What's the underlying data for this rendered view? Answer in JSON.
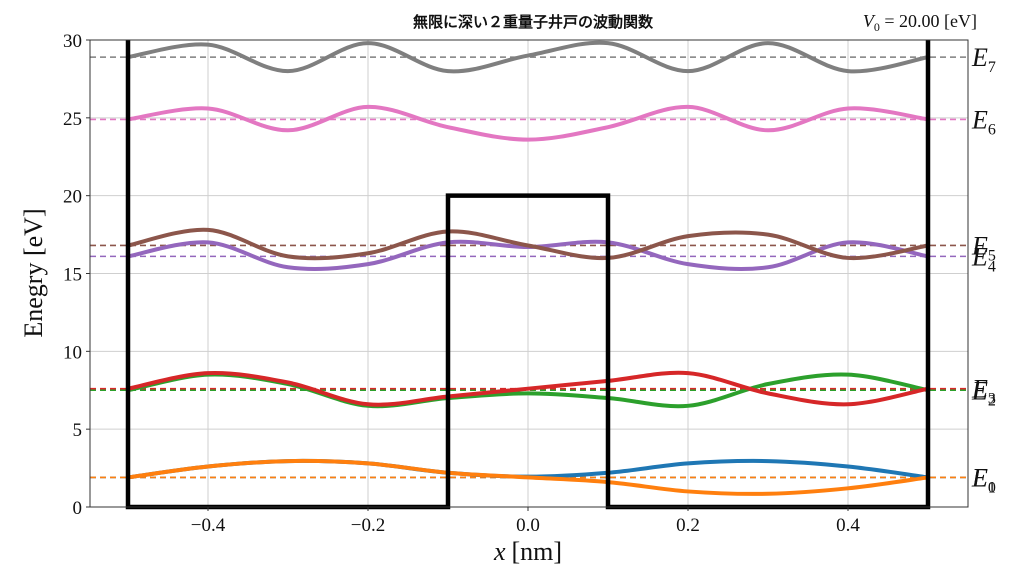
{
  "chart_data": {
    "type": "line",
    "title": "無限に深い２重量子井戸の波動関数",
    "annotation": "V_0 = 20.00 [eV]",
    "xlabel": "x [nm]",
    "ylabel": "Enegry [eV]",
    "xlim": [
      -0.55,
      0.55
    ],
    "ylim": [
      0,
      30
    ],
    "xticks": [
      -0.4,
      -0.2,
      0.0,
      0.2,
      0.4
    ],
    "xtick_labels": [
      "−0.4",
      "−0.2",
      "0.0",
      "0.2",
      "0.4"
    ],
    "yticks": [
      0,
      5,
      10,
      15,
      20,
      25,
      30
    ],
    "ytick_labels": [
      "0",
      "5",
      "10",
      "15",
      "20",
      "25",
      "30"
    ],
    "grid": true,
    "potential": {
      "description": "Infinite walls at x=±0.5 nm, central barrier of height V0=20 eV between x=-0.1 and x=0.1 nm",
      "x": [
        -0.5,
        -0.5,
        -0.1,
        -0.1,
        0.1,
        0.1,
        0.5,
        0.5
      ],
      "y": [
        30,
        0,
        0,
        20,
        20,
        0,
        0,
        30
      ]
    },
    "energy_levels": [
      {
        "name": "E_0",
        "energy": 1.9,
        "color": "#1f77b4"
      },
      {
        "name": "E_1",
        "energy": 1.9,
        "color": "#ff7f0e"
      },
      {
        "name": "E_2",
        "energy": 7.5,
        "color": "#2ca02c"
      },
      {
        "name": "E_3",
        "energy": 7.6,
        "color": "#d62728"
      },
      {
        "name": "E_4",
        "energy": 16.1,
        "color": "#9467bd"
      },
      {
        "name": "E_5",
        "energy": 16.8,
        "color": "#8c564b"
      },
      {
        "name": "E_6",
        "energy": 24.9,
        "color": "#e377c2"
      },
      {
        "name": "E_7",
        "energy": 28.9,
        "color": "#7f7f7f"
      }
    ],
    "series": [
      {
        "name": "psi_0",
        "color": "#1f77b4",
        "offset": 1.9,
        "x": [
          -0.5,
          -0.4,
          -0.3,
          -0.2,
          -0.1,
          0.0,
          0.1,
          0.2,
          0.3,
          0.4,
          0.5
        ],
        "values": [
          1.9,
          2.6,
          2.95,
          2.8,
          2.2,
          1.95,
          2.2,
          2.8,
          2.95,
          2.6,
          1.9
        ]
      },
      {
        "name": "psi_1",
        "color": "#ff7f0e",
        "offset": 1.9,
        "x": [
          -0.5,
          -0.4,
          -0.3,
          -0.2,
          -0.1,
          0.0,
          0.1,
          0.2,
          0.3,
          0.4,
          0.5
        ],
        "values": [
          1.9,
          2.6,
          2.95,
          2.8,
          2.2,
          1.9,
          1.6,
          1.0,
          0.85,
          1.2,
          1.9
        ]
      },
      {
        "name": "psi_2",
        "color": "#2ca02c",
        "offset": 7.5,
        "x": [
          -0.5,
          -0.4,
          -0.3,
          -0.2,
          -0.1,
          0.0,
          0.1,
          0.2,
          0.3,
          0.4,
          0.5
        ],
        "values": [
          7.5,
          8.5,
          7.9,
          6.5,
          7.0,
          7.3,
          7.0,
          6.5,
          7.9,
          8.5,
          7.5
        ]
      },
      {
        "name": "psi_3",
        "color": "#d62728",
        "offset": 7.6,
        "x": [
          -0.5,
          -0.4,
          -0.3,
          -0.2,
          -0.1,
          0.0,
          0.1,
          0.2,
          0.3,
          0.4,
          0.5
        ],
        "values": [
          7.6,
          8.6,
          8.0,
          6.6,
          7.1,
          7.6,
          8.1,
          8.6,
          7.3,
          6.6,
          7.6
        ]
      },
      {
        "name": "psi_4",
        "color": "#9467bd",
        "offset": 16.1,
        "x": [
          -0.5,
          -0.4,
          -0.3,
          -0.2,
          -0.1,
          0.0,
          0.1,
          0.2,
          0.3,
          0.4,
          0.5
        ],
        "values": [
          16.1,
          17.0,
          15.4,
          15.6,
          17.0,
          16.7,
          17.0,
          15.6,
          15.4,
          17.0,
          16.1
        ]
      },
      {
        "name": "psi_5",
        "color": "#8c564b",
        "offset": 16.8,
        "x": [
          -0.5,
          -0.4,
          -0.3,
          -0.2,
          -0.1,
          0.0,
          0.1,
          0.2,
          0.3,
          0.4,
          0.5
        ],
        "values": [
          16.8,
          17.8,
          16.1,
          16.3,
          17.7,
          16.8,
          16.0,
          17.4,
          17.5,
          16.0,
          16.8
        ]
      },
      {
        "name": "psi_6",
        "color": "#e377c2",
        "offset": 24.9,
        "x": [
          -0.5,
          -0.4,
          -0.3,
          -0.2,
          -0.1,
          0.0,
          0.1,
          0.2,
          0.3,
          0.4,
          0.5
        ],
        "values": [
          24.9,
          25.6,
          24.2,
          25.7,
          24.4,
          23.6,
          24.4,
          25.7,
          24.2,
          25.6,
          24.9
        ]
      },
      {
        "name": "psi_7",
        "color": "#7f7f7f",
        "offset": 28.9,
        "x": [
          -0.5,
          -0.4,
          -0.3,
          -0.2,
          -0.1,
          0.0,
          0.1,
          0.2,
          0.3,
          0.4,
          0.5
        ],
        "values": [
          28.9,
          29.7,
          28.0,
          29.8,
          28.0,
          29.0,
          29.8,
          28.0,
          29.8,
          28.0,
          28.9
        ]
      }
    ]
  },
  "labels": {
    "title": "無限に深い２重量子井戸の波動関数",
    "v0_prefix": "V",
    "v0_sub": "0",
    "v0_rest": " = 20.00 [eV]",
    "xlabel_var": "x",
    "xlabel_unit": "[nm]",
    "ylabel": "Enegry [eV]",
    "level_letter": "E"
  }
}
